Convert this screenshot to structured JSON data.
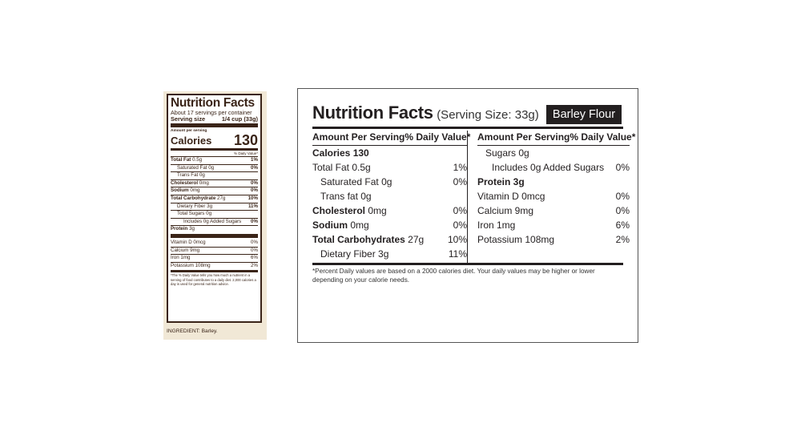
{
  "small_label": {
    "title": "Nutrition Facts",
    "servings": "About 17 servings per container",
    "serving_size_label": "Serving size",
    "serving_size_value": "1/4 cup (33g)",
    "amount_per_serving": "Amount per serving",
    "calories_label": "Calories",
    "calories_value": "130",
    "daily_value_header": "% Daily Value*",
    "rows": [
      {
        "label": "Total Fat",
        "amount": "0.5g",
        "dv": "1%"
      },
      {
        "label": "Saturated Fat",
        "amount": "0g",
        "dv": "0%"
      },
      {
        "label": "Trans Fat",
        "amount": "0g",
        "dv": ""
      },
      {
        "label": "Cholesterol",
        "amount": "0mg",
        "dv": "0%"
      },
      {
        "label": "Sodium",
        "amount": "0mg",
        "dv": "0%"
      },
      {
        "label": "Total Carbohydrate",
        "amount": "27g",
        "dv": "10%"
      },
      {
        "label": "Dietary Fiber",
        "amount": "3g",
        "dv": "11%"
      },
      {
        "label": "Total Sugars",
        "amount": "0g",
        "dv": ""
      },
      {
        "label": "Includes 0g Added Sugars",
        "amount": "",
        "dv": "0%"
      },
      {
        "label": "Protein",
        "amount": "3g",
        "dv": ""
      }
    ],
    "vitamins": [
      {
        "label": "Vitamin D 0mcg",
        "dv": "0%"
      },
      {
        "label": "Calcium 9mg",
        "dv": "0%"
      },
      {
        "label": "Iron 1mg",
        "dv": "6%"
      },
      {
        "label": "Potassium 108mg",
        "dv": "2%"
      }
    ],
    "footnote": "*The % Daily Value tells you how much a nutrient in a serving of food contributes to a daily diet. 2,000 calories a day is used for general nutrition advice.",
    "ingredient": "INGREDIENT: Barley."
  },
  "large_label": {
    "title": "Nutrition Facts",
    "serving_size": "(Serving Size: 33g)",
    "product": "Barley Flour",
    "left_header": {
      "amount": "Amount Per Serving",
      "dv": "% Daily Value*"
    },
    "right_header": {
      "amount": "Amount Per Serving",
      "dv": "% Daily Value*"
    },
    "left_rows": [
      {
        "label": "Calories 130",
        "amount": "",
        "dv": ""
      },
      {
        "label": "Total Fat",
        "amount": "0.5g",
        "dv": "1%"
      },
      {
        "label": "Saturated Fat",
        "amount": "0g",
        "dv": "0%"
      },
      {
        "label": "Trans fat",
        "amount": "0g",
        "dv": ""
      },
      {
        "label": "Cholesterol",
        "amount": "0mg",
        "dv": "0%"
      },
      {
        "label": "Sodium",
        "amount": "0mg",
        "dv": "0%"
      },
      {
        "label": "Total Carbohydrates",
        "amount": "27g",
        "dv": "10%"
      },
      {
        "label": "Dietary Fiber",
        "amount": "3g",
        "dv": "11%"
      }
    ],
    "right_rows": [
      {
        "label": "Sugars 0g",
        "dv": ""
      },
      {
        "label": "Includes 0g Added Sugars",
        "dv": "0%"
      },
      {
        "label": "Protein 3g",
        "dv": ""
      },
      {
        "label": "Vitamin D 0mcg",
        "dv": "0%"
      },
      {
        "label": "Calcium 9mg",
        "dv": "0%"
      },
      {
        "label": "Iron 1mg",
        "dv": "6%"
      },
      {
        "label": "Potassium 108mg",
        "dv": "2%"
      }
    ],
    "footnote": "*Percent Daily values are based on a 2000 calories diet. Your daily values may be higher or lower depending on your calorie needs."
  }
}
